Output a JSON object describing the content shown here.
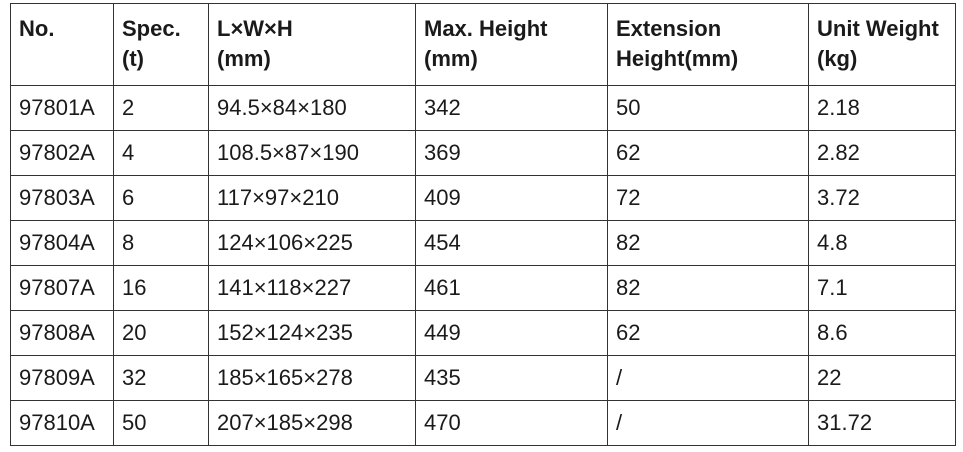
{
  "table": {
    "header": [
      [
        "No."
      ],
      [
        "Spec.",
        "(t)"
      ],
      [
        "L×W×H",
        "(mm)"
      ],
      [
        "Max. Height",
        "(mm)"
      ],
      [
        "Extension",
        "Height(mm)"
      ],
      [
        "Unit Weight",
        "(kg)"
      ]
    ],
    "rows": [
      [
        "97801A",
        "2",
        "94.5×84×180",
        "342",
        "50",
        "2.18"
      ],
      [
        "97802A",
        "4",
        "108.5×87×190",
        "369",
        "62",
        "2.82"
      ],
      [
        "97803A",
        "6",
        "117×97×210",
        "409",
        "72",
        "3.72"
      ],
      [
        "97804A",
        "8",
        "124×106×225",
        "454",
        "82",
        "4.8"
      ],
      [
        "97807A",
        "16",
        "141×118×227",
        "461",
        "82",
        "7.1"
      ],
      [
        "97808A",
        "20",
        "152×124×235",
        "449",
        "62",
        "8.6"
      ],
      [
        "97809A",
        "32",
        "185×165×278",
        "435",
        "/",
        "22"
      ],
      [
        "97810A",
        "50",
        "207×185×298",
        "470",
        "/",
        "31.72"
      ]
    ]
  }
}
